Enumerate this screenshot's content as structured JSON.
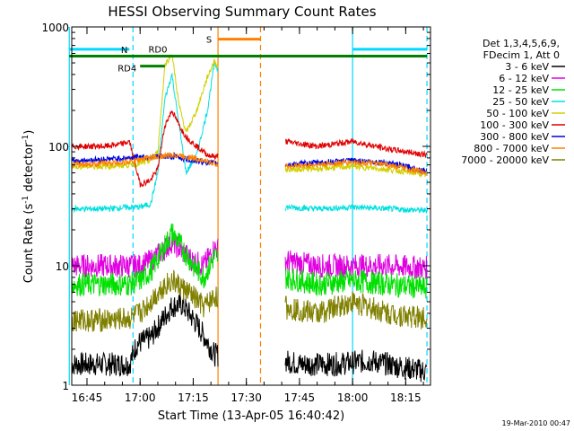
{
  "chart_data": {
    "type": "line",
    "title": "HESSI Observing Summary Count Rates",
    "xlabel": "Start Time (13-Apr-05 16:40:42)",
    "ylabel": "Count Rate (s⁻¹ detector⁻¹)",
    "ylabel_main": "Count Rate (s",
    "ylabel_sup1": "-1",
    "ylabel_mid": " detector",
    "ylabel_sup2": "-1",
    "ylabel_end": ")",
    "xlim": [
      "16:40:42",
      "18:22:00"
    ],
    "ylim": [
      1,
      1000
    ],
    "yscale": "log",
    "grid": false,
    "legend_position": "right",
    "x_ticks": [
      "16:45",
      "17:00",
      "17:15",
      "17:30",
      "17:45",
      "18:00",
      "18:15"
    ],
    "y_ticks": [
      "1",
      "10",
      "100",
      "1000"
    ],
    "legend_header": [
      "Det 1,3,4,5,6,9,",
      "FDecim 1, Att 0"
    ],
    "data_gap": [
      "17:22",
      "17:41"
    ],
    "series": [
      {
        "name": "3 - 6 keV",
        "color": "#000000",
        "x": [
          "16:40",
          "16:57",
          "16:59",
          "17:03",
          "17:06",
          "17:09",
          "17:12",
          "17:15",
          "17:18",
          "17:21",
          "17:41",
          "17:45",
          "17:55",
          "18:05",
          "18:15",
          "18:21"
        ],
        "values": [
          1.5,
          1.5,
          2.2,
          2.5,
          3.4,
          4.6,
          4.7,
          3.6,
          2.6,
          1.8,
          1.6,
          1.5,
          1.5,
          1.6,
          1.4,
          1.3
        ]
      },
      {
        "name": "6 - 12 keV",
        "color": "#e000e0",
        "x": [
          "16:40",
          "16:50",
          "16:57",
          "17:00",
          "17:03",
          "17:06",
          "17:09",
          "17:12",
          "17:15",
          "17:18",
          "17:21",
          "17:41",
          "17:50",
          "18:00",
          "18:10",
          "18:21"
        ],
        "values": [
          10,
          10,
          10,
          10,
          11,
          13,
          16,
          13,
          11,
          10,
          14,
          11,
          10,
          10,
          10,
          9.6
        ]
      },
      {
        "name": "12 - 25 keV",
        "color": "#00e000",
        "x": [
          "16:40",
          "16:50",
          "16:57",
          "17:00",
          "17:03",
          "17:06",
          "17:09",
          "17:12",
          "17:15",
          "17:18",
          "17:21",
          "17:41",
          "17:50",
          "18:00",
          "18:10",
          "18:21"
        ],
        "values": [
          7,
          7,
          7,
          7.5,
          9,
          13,
          19,
          14,
          10,
          8,
          12,
          8,
          7,
          7.5,
          7,
          6.5
        ]
      },
      {
        "name": "25 - 50 keV",
        "color": "#00e0e0",
        "x": [
          "16:40",
          "16:50",
          "16:57",
          "17:00",
          "17:03",
          "17:05",
          "17:07",
          "17:09",
          "17:11",
          "17:13",
          "17:16",
          "17:19",
          "17:21",
          "17:41",
          "17:50",
          "18:00",
          "18:10",
          "18:21"
        ],
        "values": [
          30,
          30,
          31,
          31,
          33,
          60,
          250,
          400,
          150,
          60,
          85,
          200,
          500,
          31,
          30,
          31,
          30,
          29
        ]
      },
      {
        "name": "50 - 100 keV",
        "color": "#d0d000",
        "x": [
          "16:40",
          "16:50",
          "16:57",
          "17:00",
          "17:03",
          "17:05",
          "17:07",
          "17:09",
          "17:11",
          "17:13",
          "17:16",
          "17:19",
          "17:21",
          "17:41",
          "17:50",
          "18:00",
          "18:10",
          "18:21"
        ],
        "values": [
          68,
          68,
          70,
          72,
          76,
          90,
          480,
          600,
          220,
          130,
          200,
          380,
          520,
          64,
          65,
          68,
          64,
          58
        ]
      },
      {
        "name": "100 - 300 keV",
        "color": "#e00000",
        "x": [
          "16:40",
          "16:50",
          "16:55",
          "16:57",
          "17:00",
          "17:03",
          "17:05",
          "17:07",
          "17:09",
          "17:11",
          "17:13",
          "17:16",
          "17:19",
          "17:21",
          "17:41",
          "17:50",
          "18:00",
          "18:10",
          "18:21"
        ],
        "values": [
          100,
          100,
          105,
          110,
          48,
          52,
          65,
          150,
          200,
          150,
          120,
          100,
          85,
          82,
          110,
          100,
          110,
          95,
          85
        ]
      },
      {
        "name": "300 - 800 keV",
        "color": "#0000e0",
        "x": [
          "16:40",
          "16:50",
          "16:57",
          "17:00",
          "17:05",
          "17:10",
          "17:15",
          "17:21",
          "17:41",
          "17:50",
          "18:00",
          "18:10",
          "18:21"
        ],
        "values": [
          75,
          78,
          80,
          82,
          82,
          82,
          76,
          72,
          70,
          73,
          76,
          73,
          62
        ]
      },
      {
        "name": "800 - 7000 keV",
        "color": "#ff8000",
        "x": [
          "16:40",
          "16:50",
          "16:57",
          "17:00",
          "17:05",
          "17:10",
          "17:15",
          "17:21",
          "17:41",
          "17:50",
          "18:00",
          "18:10",
          "18:21"
        ],
        "values": [
          70,
          72,
          74,
          78,
          82,
          85,
          80,
          72,
          68,
          70,
          74,
          70,
          60
        ]
      },
      {
        "name": "7000 - 20000 keV",
        "color": "#808000",
        "x": [
          "16:40",
          "16:50",
          "16:57",
          "17:00",
          "17:03",
          "17:06",
          "17:09",
          "17:12",
          "17:15",
          "17:18",
          "17:21",
          "17:41",
          "17:50",
          "18:00",
          "18:10",
          "18:21"
        ],
        "values": [
          3.5,
          3.5,
          3.6,
          4,
          5,
          6.5,
          7.5,
          6.5,
          5.5,
          4.5,
          5.5,
          4.5,
          4,
          5,
          4,
          3.6
        ]
      }
    ],
    "annotations": [
      {
        "label": "N",
        "color": "#00d8ff",
        "x_from": "16:40",
        "x_to": "16:57",
        "y": 650
      },
      {
        "label": "",
        "color": "#00d8ff",
        "x_from": "18:00",
        "x_to": "18:21",
        "y": 650
      },
      {
        "label": "S",
        "color": "#ff8000",
        "x_from": "17:22",
        "x_to": "17:34",
        "y": 790
      },
      {
        "label": "RD0",
        "color": "#008000",
        "x_from": "16:40",
        "x_to": "18:21",
        "y": 570
      },
      {
        "label": "RD4",
        "color": "#008000",
        "x_from": "17:00",
        "x_to": "17:07",
        "y": 470
      }
    ],
    "vlines": [
      {
        "x": "16:40",
        "color": "#00d8ff",
        "style": "solid"
      },
      {
        "x": "16:58",
        "color": "#00d8ff",
        "style": "dashed"
      },
      {
        "x": "17:22",
        "color": "#ff8000",
        "style": "solid"
      },
      {
        "x": "17:34",
        "color": "#ff8000",
        "style": "dashed"
      },
      {
        "x": "18:00",
        "color": "#00d8ff",
        "style": "solid"
      },
      {
        "x": "18:21",
        "color": "#00d8ff",
        "style": "dashed"
      }
    ]
  },
  "footer": {
    "timestamp": "19-Mar-2010 00:47"
  }
}
